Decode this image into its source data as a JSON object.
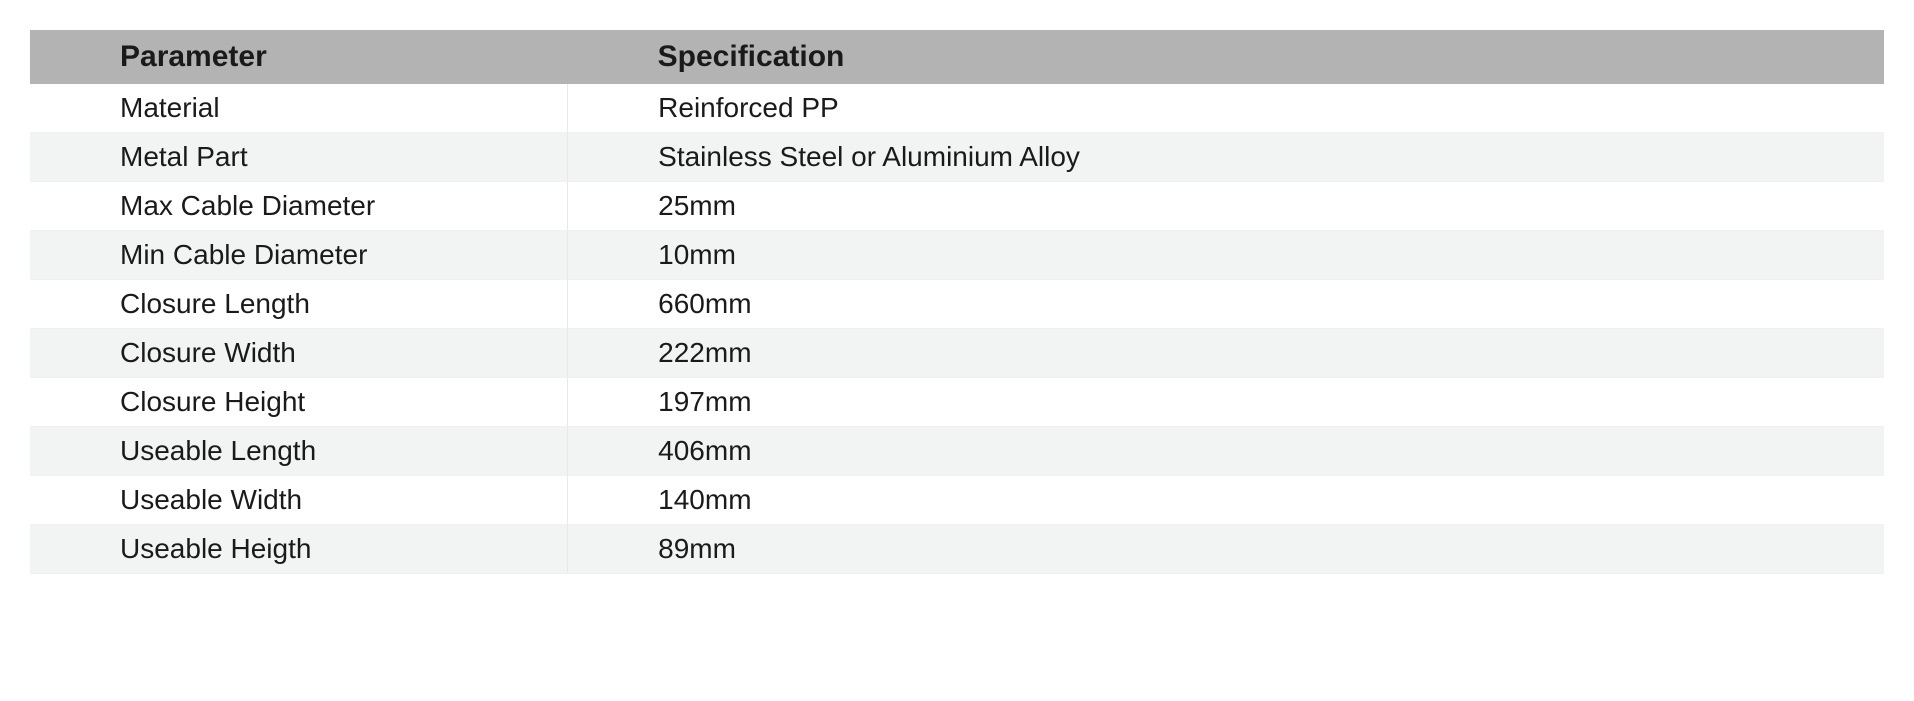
{
  "table": {
    "type": "table",
    "header_bg": "#b3b3b3",
    "row_bg": "#ffffff",
    "row_alt_bg": "#f1f4f3",
    "text_color": "#1a1a1a",
    "header_fontsize": 30,
    "body_fontsize": 28,
    "header_fontweight": 700,
    "body_fontweight": 400,
    "col1_width_pct": 29,
    "cell_padding_left": 90,
    "columns": [
      "Parameter",
      "Specification"
    ],
    "rows": [
      [
        "Material",
        "Reinforced PP"
      ],
      [
        "Metal Part",
        "Stainless Steel or Aluminium Alloy"
      ],
      [
        "Max Cable Diameter",
        "25mm"
      ],
      [
        "Min Cable Diameter",
        "10mm"
      ],
      [
        "Closure Length",
        "660mm"
      ],
      [
        "Closure Width",
        "222mm"
      ],
      [
        "Closure Height",
        "197mm"
      ],
      [
        "Useable Length",
        "406mm"
      ],
      [
        "Useable Width",
        "140mm"
      ],
      [
        "Useable Heigth",
        "89mm"
      ]
    ]
  }
}
